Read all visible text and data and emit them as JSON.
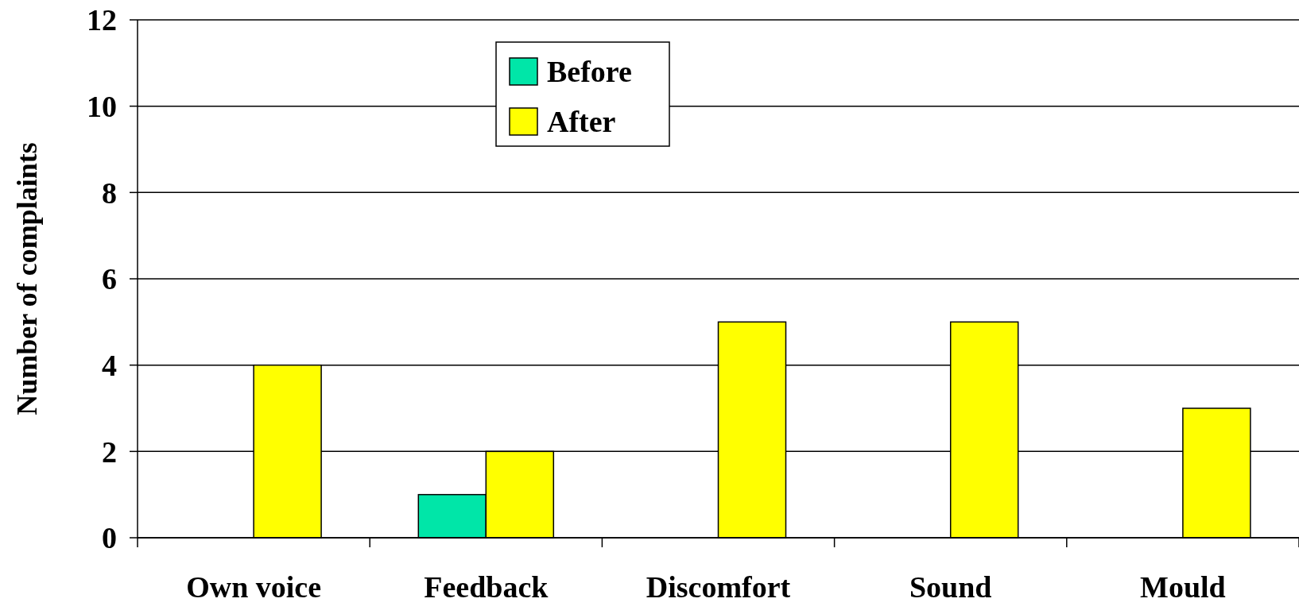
{
  "chart_data": {
    "type": "bar",
    "ylabel": "Number of complaints",
    "categories": [
      "Own voice",
      "Feedback",
      "Discomfort",
      "Sound",
      "Mould"
    ],
    "series": [
      {
        "name": "Before",
        "color": "#00e6a8",
        "values": [
          0,
          1,
          0,
          0,
          0
        ]
      },
      {
        "name": "After",
        "color": "#ffff00",
        "values": [
          4,
          2,
          5,
          5,
          3
        ]
      }
    ],
    "ylim": [
      0,
      12
    ],
    "yticks": [
      0,
      2,
      4,
      6,
      8,
      10,
      12
    ],
    "grid": "y",
    "legend": "top"
  }
}
